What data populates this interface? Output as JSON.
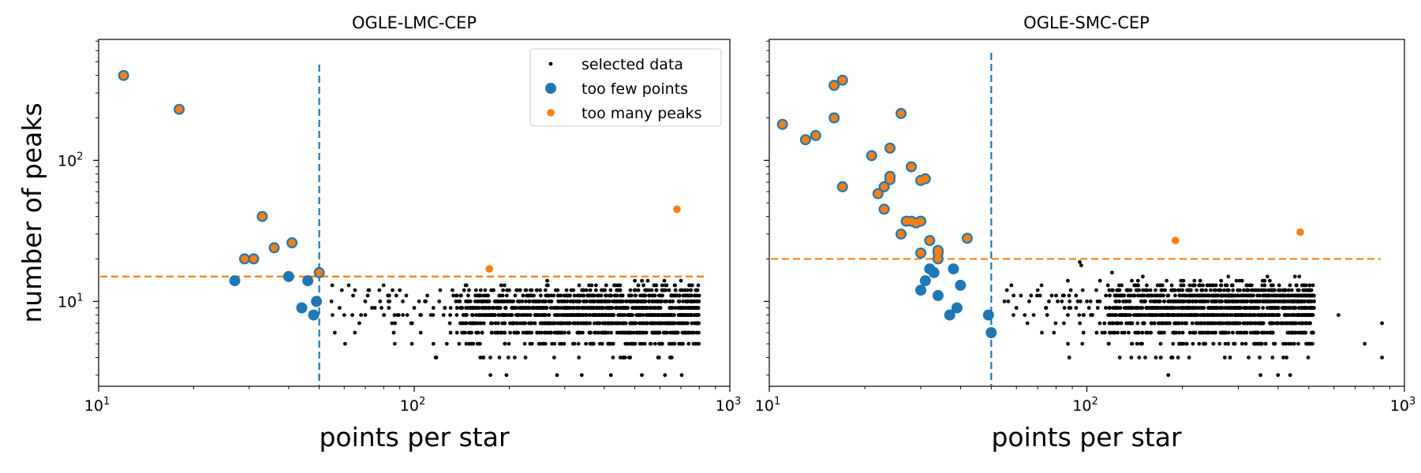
{
  "chart_data": [
    {
      "type": "scatter",
      "title": "OGLE-LMC-CEP",
      "xlabel": "points per star",
      "ylabel": "number of peaks",
      "xscale": "log",
      "yscale": "log",
      "xlim": [
        10,
        1000
      ],
      "ylim": [
        2.5,
        720
      ],
      "x_ticklabels": [
        "10^1",
        "10^2",
        "10^3"
      ],
      "y_ticklabels": [
        "10^1",
        "10^2"
      ],
      "thresholds": {
        "points_vline": 50,
        "peaks_hline": 15
      },
      "legend": {
        "position": "top-right",
        "entries": [
          "selected data",
          "too few points",
          "too many peaks"
        ]
      },
      "series": [
        {
          "name": "too few points",
          "points": [
            [
              12,
              400
            ],
            [
              18,
              230
            ],
            [
              27,
              14
            ],
            [
              29,
              20
            ],
            [
              31,
              20
            ],
            [
              33,
              40
            ],
            [
              36,
              24
            ],
            [
              40,
              15
            ],
            [
              41,
              26
            ],
            [
              44,
              9
            ],
            [
              46,
              14
            ],
            [
              48,
              8
            ],
            [
              49,
              10
            ],
            [
              50,
              16
            ]
          ]
        },
        {
          "name": "too many peaks",
          "points": [
            [
              12,
              400
            ],
            [
              18,
              230
            ],
            [
              29,
              20
            ],
            [
              31,
              20
            ],
            [
              33,
              40
            ],
            [
              36,
              24
            ],
            [
              41,
              26
            ],
            [
              50,
              16
            ],
            [
              173,
              17
            ],
            [
              680,
              45
            ]
          ]
        },
        {
          "name": "selected data",
          "band": {
            "x_range": [
              52,
              800
            ],
            "y_values": [
              3,
              4,
              5,
              6,
              7,
              8,
              9,
              10,
              11,
              12,
              13,
              14
            ]
          },
          "points": [
            [
              55,
              13
            ],
            [
              56,
              6
            ],
            [
              58,
              9
            ],
            [
              59,
              12
            ],
            [
              60,
              8
            ],
            [
              62,
              13
            ],
            [
              64,
              11
            ],
            [
              67,
              7
            ],
            [
              70,
              8
            ],
            [
              72,
              12
            ],
            [
              75,
              9
            ],
            [
              78,
              10
            ],
            [
              80,
              13
            ],
            [
              85,
              7
            ],
            [
              90,
              12
            ],
            [
              95,
              8
            ],
            [
              100,
              9
            ],
            [
              105,
              8
            ],
            [
              110,
              11
            ],
            [
              115,
              5
            ],
            [
              120,
              10
            ],
            [
              125,
              9
            ],
            [
              130,
              8
            ],
            [
              140,
              9
            ],
            [
              150,
              7
            ],
            [
              160,
              11
            ],
            [
              180,
              8
            ],
            [
              200,
              12
            ],
            [
              220,
              9
            ],
            [
              250,
              6
            ],
            [
              300,
              10
            ],
            [
              350,
              5
            ],
            [
              420,
              3
            ],
            [
              430,
              13
            ],
            [
              450,
              4
            ],
            [
              480,
              4
            ],
            [
              500,
              14
            ],
            [
              560,
              5
            ],
            [
              620,
              14
            ],
            [
              650,
              4
            ],
            [
              700,
              14
            ],
            [
              760,
              13
            ]
          ]
        }
      ]
    },
    {
      "type": "scatter",
      "title": "OGLE-SMC-CEP",
      "xlabel": "points per star",
      "ylabel": "",
      "xscale": "log",
      "yscale": "log",
      "xlim": [
        10,
        1000
      ],
      "ylim": [
        2.5,
        720
      ],
      "x_ticklabels": [
        "10^1",
        "10^2",
        "10^3"
      ],
      "thresholds": {
        "points_vline": 50,
        "peaks_hline": 20
      },
      "series": [
        {
          "name": "too few points",
          "points": [
            [
              11,
              180
            ],
            [
              13,
              140
            ],
            [
              14,
              150
            ],
            [
              16,
              340
            ],
            [
              16,
              200
            ],
            [
              17,
              370
            ],
            [
              17,
              65
            ],
            [
              21,
              108
            ],
            [
              22,
              58
            ],
            [
              23,
              65
            ],
            [
              23,
              45
            ],
            [
              24,
              77
            ],
            [
              24,
              122
            ],
            [
              24,
              73
            ],
            [
              26,
              30
            ],
            [
              26,
              215
            ],
            [
              27,
              37
            ],
            [
              28,
              37
            ],
            [
              28,
              90
            ],
            [
              29,
              36
            ],
            [
              30,
              72
            ],
            [
              30,
              37
            ],
            [
              30,
              22
            ],
            [
              31,
              74
            ],
            [
              32,
              27
            ],
            [
              34,
              23
            ],
            [
              34,
              22
            ],
            [
              34,
              20
            ],
            [
              30,
              12
            ],
            [
              31,
              14
            ],
            [
              32,
              17
            ],
            [
              33,
              16
            ],
            [
              34,
              11
            ],
            [
              37,
              8
            ],
            [
              38,
              17
            ],
            [
              39,
              9
            ],
            [
              40,
              13
            ],
            [
              42,
              28
            ],
            [
              49,
              8
            ],
            [
              50,
              6
            ]
          ]
        },
        {
          "name": "too many peaks",
          "points": [
            [
              11,
              180
            ],
            [
              13,
              140
            ],
            [
              14,
              150
            ],
            [
              16,
              340
            ],
            [
              16,
              200
            ],
            [
              17,
              370
            ],
            [
              17,
              65
            ],
            [
              21,
              108
            ],
            [
              22,
              58
            ],
            [
              23,
              65
            ],
            [
              23,
              45
            ],
            [
              24,
              77
            ],
            [
              24,
              122
            ],
            [
              24,
              73
            ],
            [
              26,
              30
            ],
            [
              26,
              215
            ],
            [
              27,
              37
            ],
            [
              28,
              37
            ],
            [
              28,
              90
            ],
            [
              29,
              36
            ],
            [
              30,
              72
            ],
            [
              30,
              37
            ],
            [
              30,
              22
            ],
            [
              31,
              74
            ],
            [
              32,
              27
            ],
            [
              34,
              23
            ],
            [
              34,
              22
            ],
            [
              34,
              20
            ],
            [
              42,
              28
            ],
            [
              190,
              27
            ],
            [
              470,
              31
            ]
          ]
        },
        {
          "name": "selected data",
          "band": {
            "x_range": [
              52,
              520
            ],
            "y_values": [
              3,
              4,
              5,
              6,
              7,
              8,
              9,
              10,
              11,
              12,
              13,
              14,
              15
            ]
          },
          "points": [
            [
              55,
              10
            ],
            [
              56,
              12
            ],
            [
              60,
              9
            ],
            [
              62,
              11
            ],
            [
              65,
              7
            ],
            [
              68,
              8
            ],
            [
              70,
              12
            ],
            [
              72,
              13
            ],
            [
              75,
              8
            ],
            [
              80,
              11
            ],
            [
              85,
              9
            ],
            [
              88,
              4
            ],
            [
              95,
              19
            ],
            [
              96,
              18
            ],
            [
              100,
              10
            ],
            [
              110,
              14
            ],
            [
              120,
              16
            ],
            [
              130,
              8
            ],
            [
              150,
              15
            ],
            [
              170,
              6
            ],
            [
              200,
              12
            ],
            [
              250,
              5
            ],
            [
              300,
              10
            ],
            [
              350,
              4
            ],
            [
              400,
              3
            ],
            [
              420,
              11
            ],
            [
              450,
              7
            ],
            [
              500,
              5
            ],
            [
              620,
              8
            ],
            [
              750,
              5
            ],
            [
              850,
              7
            ],
            [
              850,
              4
            ]
          ]
        }
      ]
    }
  ]
}
